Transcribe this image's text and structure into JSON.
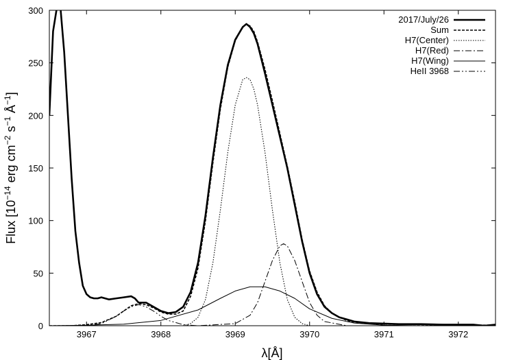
{
  "chart_data": {
    "type": "line",
    "xlabel": "λ[Å]",
    "ylabel": {
      "prefix": "Flux [10",
      "exp1": "−14",
      "mid1": " erg cm",
      "exp2": "−2",
      "mid2": " s",
      "exp3": "−1",
      "mid3": " Å",
      "exp4": "−1",
      "suffix": "]"
    },
    "xlim": [
      3966.5,
      3972.5
    ],
    "ylim": [
      0,
      300
    ],
    "xticks": [
      3967,
      3968,
      3969,
      3970,
      3971,
      3972
    ],
    "yticks": [
      0,
      50,
      100,
      150,
      200,
      250,
      300
    ],
    "legend_position": "top-right",
    "series": [
      {
        "name": "2017/July/26",
        "style": "thick-solid",
        "x": [
          3966.5,
          3966.55,
          3966.6,
          3966.65,
          3966.7,
          3966.75,
          3966.8,
          3966.85,
          3966.9,
          3966.95,
          3967.0,
          3967.05,
          3967.1,
          3967.15,
          3967.2,
          3967.3,
          3967.4,
          3967.5,
          3967.6,
          3967.65,
          3967.7,
          3967.8,
          3967.9,
          3968.0,
          3968.1,
          3968.2,
          3968.3,
          3968.4,
          3968.5,
          3968.6,
          3968.7,
          3968.8,
          3968.9,
          3969.0,
          3969.1,
          3969.15,
          3969.2,
          3969.25,
          3969.3,
          3969.4,
          3969.5,
          3969.6,
          3969.7,
          3969.8,
          3969.9,
          3970.0,
          3970.1,
          3970.2,
          3970.3,
          3970.4,
          3970.5,
          3970.6,
          3970.8,
          3971.0,
          3971.2,
          3971.5,
          3971.8,
          3972.0,
          3972.2,
          3972.35,
          3972.5
        ],
        "values": [
          200,
          280,
          302,
          302,
          260,
          200,
          140,
          90,
          60,
          38,
          30,
          27,
          26,
          26,
          27,
          25,
          26,
          27,
          28,
          26,
          22,
          22,
          18,
          14,
          12,
          13,
          18,
          32,
          60,
          105,
          160,
          210,
          248,
          272,
          284,
          287,
          284,
          278,
          268,
          240,
          210,
          180,
          150,
          115,
          80,
          50,
          30,
          18,
          12,
          8,
          6,
          4,
          2.5,
          2,
          1.5,
          1.5,
          1,
          1,
          1,
          0,
          1
        ]
      },
      {
        "name": "Sum",
        "style": "dashed",
        "x": [
          3966.5,
          3966.8,
          3967.0,
          3967.2,
          3967.4,
          3967.5,
          3967.6,
          3967.7,
          3967.8,
          3967.9,
          3968.0,
          3968.1,
          3968.2,
          3968.3,
          3968.4,
          3968.5,
          3968.6,
          3968.7,
          3968.8,
          3968.9,
          3969.0,
          3969.1,
          3969.15,
          3969.2,
          3969.25,
          3969.3,
          3969.4,
          3969.5,
          3969.6,
          3969.7,
          3969.8,
          3969.9,
          3970.0,
          3970.1,
          3970.2,
          3970.3,
          3970.4,
          3970.5,
          3970.6,
          3970.8,
          3971.0,
          3971.5,
          3972.0,
          3972.5
        ],
        "values": [
          0,
          0,
          1,
          3,
          9,
          14,
          19,
          21,
          20,
          17,
          13,
          11,
          11,
          14,
          28,
          55,
          100,
          155,
          206,
          246,
          271,
          284,
          287,
          285,
          280,
          270,
          244,
          214,
          183,
          152,
          118,
          82,
          52,
          32,
          19,
          12,
          8,
          5,
          3.5,
          2,
          1.5,
          1,
          0.5,
          0.5
        ]
      },
      {
        "name": "H7(Center)",
        "style": "dotted",
        "x": [
          3968.3,
          3968.4,
          3968.5,
          3968.6,
          3968.7,
          3968.8,
          3968.9,
          3969.0,
          3969.1,
          3969.15,
          3969.2,
          3969.25,
          3969.3,
          3969.4,
          3969.5,
          3969.6,
          3969.7,
          3969.8,
          3969.9,
          3970.0
        ],
        "values": [
          0,
          2,
          8,
          25,
          60,
          110,
          165,
          210,
          234,
          236,
          234,
          225,
          210,
          165,
          110,
          60,
          25,
          8,
          2,
          0
        ]
      },
      {
        "name": "H7(Red)",
        "style": "dash-dot",
        "x": [
          3966.5,
          3968.5,
          3969.0,
          3969.2,
          3969.3,
          3969.4,
          3969.5,
          3969.6,
          3969.65,
          3969.7,
          3969.8,
          3969.9,
          3970.0,
          3970.1,
          3970.2,
          3970.5,
          3972.5
        ],
        "values": [
          0,
          0,
          2,
          10,
          22,
          42,
          62,
          76,
          78,
          76,
          62,
          42,
          22,
          10,
          4,
          0,
          0
        ]
      },
      {
        "name": "H7(Wing)",
        "style": "thin-solid",
        "x": [
          3966.5,
          3967.0,
          3967.5,
          3968.0,
          3968.5,
          3968.8,
          3969.0,
          3969.2,
          3969.4,
          3969.6,
          3969.8,
          3970.0,
          3970.3,
          3970.6,
          3971.0,
          3971.5,
          3972.5
        ],
        "values": [
          0,
          0.5,
          1.5,
          5,
          15,
          26,
          33,
          37,
          37,
          33,
          26,
          16,
          7,
          2.5,
          0.5,
          0,
          0
        ]
      },
      {
        "name": "HeII 3968",
        "style": "dash-dot-dot",
        "x": [
          3966.5,
          3967.0,
          3967.2,
          3967.4,
          3967.5,
          3967.6,
          3967.7,
          3967.8,
          3967.9,
          3968.0,
          3968.1,
          3968.3,
          3968.5,
          3972.5
        ],
        "values": [
          0,
          0,
          2,
          9,
          14,
          18,
          20,
          18,
          14,
          9,
          5,
          1,
          0,
          0
        ]
      }
    ]
  }
}
